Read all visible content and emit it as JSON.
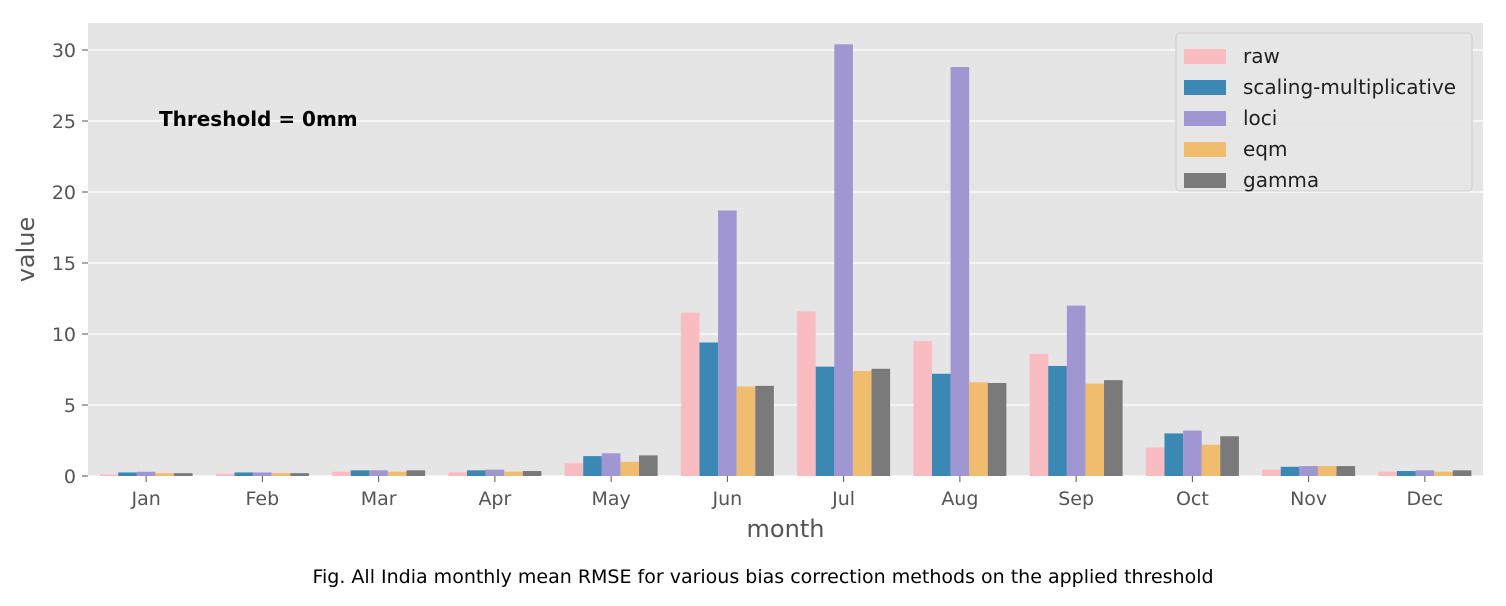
{
  "chart_data": {
    "type": "bar",
    "title": "",
    "xlabel": "month",
    "ylabel": "value",
    "ylim": [
      0,
      31.9
    ],
    "yticks": [
      0,
      5,
      10,
      15,
      20,
      25,
      30
    ],
    "grid": true,
    "legend_position": "top-right",
    "annotation": "Threshold = 0mm",
    "categories": [
      "Jan",
      "Feb",
      "Mar",
      "Apr",
      "May",
      "Jun",
      "Jul",
      "Aug",
      "Sep",
      "Oct",
      "Nov",
      "Dec"
    ],
    "series": [
      {
        "name": "raw",
        "color": "#f9bcc1",
        "values": [
          0.1,
          0.15,
          0.3,
          0.25,
          0.9,
          11.5,
          11.6,
          9.5,
          8.6,
          2.0,
          0.45,
          0.3
        ]
      },
      {
        "name": "scaling-multiplicative",
        "color": "#3b88b4",
        "values": [
          0.25,
          0.25,
          0.4,
          0.4,
          1.4,
          9.4,
          7.7,
          7.2,
          7.75,
          3.0,
          0.65,
          0.35
        ]
      },
      {
        "name": "loci",
        "color": "#a097d2",
        "values": [
          0.3,
          0.25,
          0.4,
          0.45,
          1.6,
          18.7,
          30.4,
          28.8,
          12.0,
          3.2,
          0.7,
          0.4
        ]
      },
      {
        "name": "eqm",
        "color": "#f0bc6e",
        "values": [
          0.2,
          0.2,
          0.3,
          0.3,
          1.0,
          6.3,
          7.4,
          6.6,
          6.5,
          2.2,
          0.7,
          0.3
        ]
      },
      {
        "name": "gamma",
        "color": "#7a7a7a",
        "values": [
          0.2,
          0.2,
          0.4,
          0.35,
          1.45,
          6.35,
          7.55,
          6.55,
          6.75,
          2.8,
          0.7,
          0.4
        ]
      }
    ]
  },
  "caption": "Fig. All India monthly mean RMSE for various bias correction methods on the applied threshold",
  "colors": {
    "plot_background": "#e5e5e5",
    "grid": "#ffffff",
    "legend_background": "#e5e5e5",
    "legend_border": "#cccccc"
  }
}
